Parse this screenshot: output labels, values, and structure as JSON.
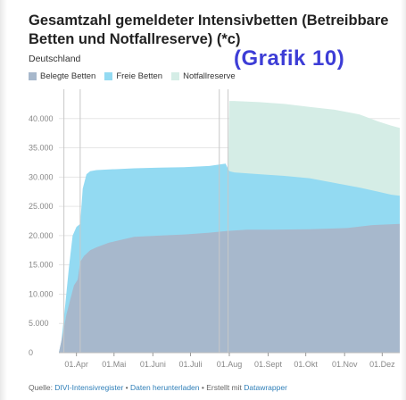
{
  "chart_data": {
    "type": "area",
    "title": "Gesamtzahl gemeldeter Intensivbetten (Betreibbare Betten und Notfallreserve) (*c)",
    "subtitle": "Deutschland",
    "annotation": "(Grafik 10)",
    "xlabel": "",
    "ylabel": "",
    "ylim": [
      0,
      45000
    ],
    "y_ticks": [
      "0",
      "5.000",
      "10.000",
      "15.000",
      "20.000",
      "25.000",
      "30.000",
      "35.000",
      "40.000"
    ],
    "x_ticks": [
      "01.Apr",
      "01.Mai",
      "01.Juni",
      "01.Juli",
      "01.Aug",
      "01.Sept",
      "01.Okt",
      "01.Nov",
      "01.Dez"
    ],
    "x_tick_days": [
      14,
      44,
      75,
      105,
      136,
      167,
      197,
      228,
      258
    ],
    "x_range_days": [
      0,
      272
    ],
    "grid": true,
    "legend_position": "top-left",
    "reference_lines_days": [
      4,
      17,
      128,
      135
    ],
    "series": [
      {
        "name": "Belegte Betten",
        "color": "#a7b8cc",
        "x_days": [
          0,
          3,
          6,
          9,
          12,
          15,
          17,
          20,
          25,
          30,
          40,
          60,
          80,
          100,
          120,
          135,
          150,
          170,
          200,
          230,
          250,
          272
        ],
        "values": [
          0,
          3000,
          6500,
          9000,
          11500,
          12500,
          15500,
          16500,
          17500,
          18000,
          18800,
          19800,
          20000,
          20200,
          20500,
          20800,
          21000,
          21000,
          21100,
          21300,
          21800,
          22000
        ]
      },
      {
        "name": "Freie Betten",
        "color": "#93daf2",
        "x_days": [
          0,
          2,
          5,
          8,
          11,
          14,
          17,
          19,
          22,
          25,
          30,
          40,
          60,
          80,
          100,
          120,
          133,
          136,
          140,
          160,
          180,
          200,
          220,
          240,
          255,
          265,
          272
        ],
        "values": [
          0,
          2000,
          8000,
          14500,
          20000,
          21500,
          22000,
          28000,
          30500,
          31000,
          31200,
          31300,
          31500,
          31600,
          31700,
          31900,
          32300,
          31000,
          30800,
          30500,
          30200,
          29800,
          29000,
          28200,
          27500,
          27000,
          26800
        ]
      },
      {
        "name": "Notfallreserve",
        "color": "#d5ede6",
        "x_days": [
          133,
          136,
          140,
          160,
          180,
          200,
          220,
          240,
          255,
          265,
          272
        ],
        "values": [
          0,
          43000,
          43000,
          42800,
          42500,
          42000,
          41500,
          40700,
          39500,
          38800,
          38400
        ]
      }
    ]
  },
  "footer": {
    "prefix": "Quelle: ",
    "source": "DIVI-Intensivregister",
    "sep1": " • ",
    "download": "Daten herunterladen",
    "sep2": " • Erstellt mit ",
    "tool": "Datawrapper"
  }
}
